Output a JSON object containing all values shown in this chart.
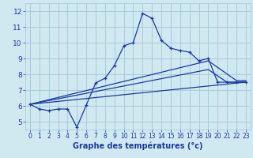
{
  "background_color": "#d0e8f0",
  "grid_color": "#a0c8d8",
  "line_color": "#1a3a9e",
  "xlabel": "Graphe des températures (°c)",
  "xlabel_fontsize": 7,
  "xlim": [
    -0.5,
    23.5
  ],
  "ylim": [
    4.5,
    12.5
  ],
  "xticks": [
    0,
    1,
    2,
    3,
    4,
    5,
    6,
    7,
    8,
    9,
    10,
    11,
    12,
    13,
    14,
    15,
    16,
    17,
    18,
    19,
    20,
    21,
    22,
    23
  ],
  "yticks": [
    5,
    6,
    7,
    8,
    9,
    10,
    11,
    12
  ],
  "line_main_x": [
    0,
    1,
    2,
    3,
    4,
    5,
    6,
    7,
    8,
    9,
    10,
    11,
    12,
    13,
    14,
    15,
    16,
    17,
    18,
    19,
    20,
    21,
    22,
    23
  ],
  "line_main_y": [
    6.1,
    5.8,
    5.7,
    5.8,
    5.8,
    4.65,
    6.05,
    7.45,
    7.75,
    8.55,
    9.8,
    10.0,
    11.85,
    11.55,
    10.15,
    9.65,
    9.5,
    9.4,
    8.85,
    9.0,
    7.5,
    7.5,
    7.5,
    7.5
  ],
  "line2_x": [
    0,
    23
  ],
  "line2_y": [
    6.1,
    7.5
  ],
  "line3_x": [
    0,
    19,
    21,
    23
  ],
  "line3_y": [
    6.1,
    8.3,
    7.5,
    7.5
  ],
  "line4_x": [
    0,
    19,
    22,
    23
  ],
  "line4_y": [
    6.1,
    8.85,
    7.6,
    7.6
  ],
  "tick_fontsize": 5.5,
  "ytick_fontsize": 6.5
}
